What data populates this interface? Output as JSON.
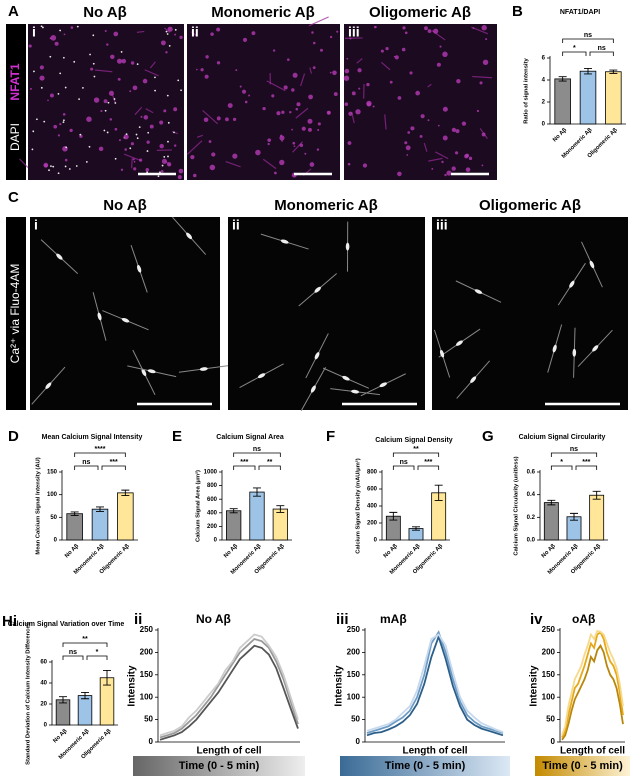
{
  "micrographs": [
    {
      "panel": "A",
      "stain_label": [
        "DAPI",
        "NFAT1"
      ],
      "titles": [
        "No Aβ",
        "Monomeric Aβ",
        "Oligomeric Aβ"
      ],
      "subpanels": [
        "i",
        "ii",
        "iii"
      ]
    },
    {
      "panel": "C",
      "stain_label": [
        "Ca²⁺ via Fluo-4AM"
      ],
      "titles": [
        "No Aβ",
        "Monomeric Aβ",
        "Oligomeric Aβ"
      ],
      "subpanels": [
        "i",
        "ii",
        "iii"
      ]
    }
  ],
  "chart_data": [
    {
      "type": "bar",
      "panel": "B",
      "title": "NFAT1/DAPI",
      "ylabel": "Ratio of signal intensity",
      "categories": [
        "No Aβ",
        "Monomeric Aβ",
        "Oligomeric Aβ"
      ],
      "values": [
        4.1,
        4.8,
        4.75
      ],
      "errors": [
        0.2,
        0.25,
        0.15
      ],
      "colors": [
        "#8c8c8c",
        "#9dc3e6",
        "#ffe699"
      ],
      "ylim": [
        0,
        6
      ],
      "yticks": [
        0,
        2,
        4,
        6
      ],
      "significance": [
        {
          "pair": [
            "No Aβ",
            "Oligomeric Aβ"
          ],
          "label": "ns"
        },
        {
          "pair": [
            "No Aβ",
            "Monomeric Aβ"
          ],
          "label": "*"
        },
        {
          "pair": [
            "Monomeric Aβ",
            "Oligomeric Aβ"
          ],
          "label": "ns"
        }
      ]
    },
    {
      "type": "bar",
      "panel": "D",
      "title": "Mean Calcium Signal Intensity",
      "ylabel": "Mean Calcium Signal Intensity (AU)",
      "categories": [
        "No Aβ",
        "Monomeric Aβ",
        "Oligomeric Aβ"
      ],
      "values": [
        58,
        68,
        104
      ],
      "errors": [
        4,
        5,
        6
      ],
      "colors": [
        "#8c8c8c",
        "#9dc3e6",
        "#ffe699"
      ],
      "ylim": [
        0,
        150
      ],
      "yticks": [
        0,
        50,
        100,
        150
      ],
      "significance": [
        {
          "pair": [
            "No Aβ",
            "Oligomeric Aβ"
          ],
          "label": "****"
        },
        {
          "pair": [
            "No Aβ",
            "Monomeric Aβ"
          ],
          "label": "ns"
        },
        {
          "pair": [
            "Monomeric Aβ",
            "Oligomeric Aβ"
          ],
          "label": "***"
        }
      ]
    },
    {
      "type": "bar",
      "panel": "E",
      "title": "Calcium Signal Area",
      "ylabel": "Calcium Signal Area (μm²)",
      "categories": [
        "No Aβ",
        "Monomeric Aβ",
        "Oligomeric Aβ"
      ],
      "values": [
        430,
        705,
        455
      ],
      "errors": [
        30,
        60,
        50
      ],
      "colors": [
        "#8c8c8c",
        "#9dc3e6",
        "#ffe699"
      ],
      "ylim": [
        0,
        1000
      ],
      "yticks": [
        0,
        200,
        400,
        600,
        800,
        1000
      ],
      "significance": [
        {
          "pair": [
            "No Aβ",
            "Oligomeric Aβ"
          ],
          "label": "ns"
        },
        {
          "pair": [
            "No Aβ",
            "Monomeric Aβ"
          ],
          "label": "***"
        },
        {
          "pair": [
            "Monomeric Aβ",
            "Oligomeric Aβ"
          ],
          "label": "**"
        }
      ]
    },
    {
      "type": "bar",
      "panel": "F",
      "title": "Calcium Signal Density",
      "ylabel": "Calcium Signal Density (mAU/μm²)",
      "categories": [
        "No Aβ",
        "Monomeric Aβ",
        "Oligomeric Aβ"
      ],
      "values": [
        280,
        135,
        555
      ],
      "errors": [
        45,
        20,
        90
      ],
      "colors": [
        "#8c8c8c",
        "#9dc3e6",
        "#ffe699"
      ],
      "ylim": [
        0,
        800
      ],
      "yticks": [
        0,
        200,
        400,
        600,
        800
      ],
      "significance": [
        {
          "pair": [
            "No Aβ",
            "Oligomeric Aβ"
          ],
          "label": "**"
        },
        {
          "pair": [
            "No Aβ",
            "Monomeric Aβ"
          ],
          "label": "ns"
        },
        {
          "pair": [
            "Monomeric Aβ",
            "Oligomeric Aβ"
          ],
          "label": "***"
        }
      ]
    },
    {
      "type": "bar",
      "panel": "G",
      "title": "Calcium Signal Circularity",
      "ylabel": "Calcium Signal Circularity (unitless)",
      "categories": [
        "No Aβ",
        "Monomeric Aβ",
        "Oligomeric Aβ"
      ],
      "values": [
        0.33,
        0.205,
        0.395
      ],
      "errors": [
        0.02,
        0.03,
        0.035
      ],
      "colors": [
        "#8c8c8c",
        "#9dc3e6",
        "#ffe699"
      ],
      "ylim": [
        0,
        0.6
      ],
      "yticks": [
        {
          "value": 0,
          "label": "0.0"
        },
        0.2,
        0.4,
        0.6
      ],
      "significance": [
        {
          "pair": [
            "No Aβ",
            "Oligomeric Aβ"
          ],
          "label": "ns"
        },
        {
          "pair": [
            "No Aβ",
            "Monomeric Aβ"
          ],
          "label": "*"
        },
        {
          "pair": [
            "Monomeric Aβ",
            "Oligomeric Aβ"
          ],
          "label": "***"
        }
      ]
    },
    {
      "type": "bar",
      "panel": "Hi",
      "title": "Calcium Signal Variation over Time",
      "ylabel": "Standard Deviation of Calcium Intensity Differences",
      "categories": [
        "No Aβ",
        "Monomeric Aβ",
        "Oligomeric Aβ"
      ],
      "values": [
        24,
        28,
        45
      ],
      "errors": [
        3,
        3,
        7
      ],
      "colors": [
        "#8c8c8c",
        "#9dc3e6",
        "#ffe699"
      ],
      "ylim": [
        0,
        60
      ],
      "yticks": [
        0,
        20,
        40,
        60
      ],
      "significance": [
        {
          "pair": [
            "No Aβ",
            "Oligomeric Aβ"
          ],
          "label": "**"
        },
        {
          "pair": [
            "No Aβ",
            "Monomeric Aβ"
          ],
          "label": "ns"
        },
        {
          "pair": [
            "Monomeric Aβ",
            "Oligomeric Aβ"
          ],
          "label": "*"
        }
      ]
    },
    {
      "type": "line",
      "panel": "ii",
      "title": "No Aβ",
      "xlabel": "Length of cell",
      "ylabel": "Intensity",
      "ylim": [
        0,
        250
      ],
      "yticks": [
        0,
        50,
        100,
        150,
        200,
        250
      ],
      "series": [
        {
          "color": "#555555",
          "values": [
            5,
            10,
            15,
            22,
            35,
            50,
            70,
            90,
            110,
            135,
            160,
            185,
            200,
            215,
            210,
            195,
            165,
            120,
            75,
            30
          ]
        },
        {
          "color": "#999999",
          "values": [
            10,
            15,
            20,
            30,
            45,
            60,
            80,
            100,
            125,
            150,
            175,
            200,
            215,
            230,
            225,
            210,
            180,
            140,
            90,
            40
          ]
        },
        {
          "color": "#cccccc",
          "values": [
            15,
            20,
            25,
            35,
            55,
            70,
            90,
            110,
            130,
            160,
            180,
            210,
            225,
            240,
            235,
            215,
            190,
            150,
            100,
            50
          ]
        }
      ],
      "colorbar": {
        "label": "Time (0 - 5 min)",
        "colors": [
          "#666666",
          "#eeeeee"
        ]
      }
    },
    {
      "type": "line",
      "panel": "iii",
      "title": "mAβ",
      "xlabel": "Length of cell",
      "ylabel": "Intensity",
      "ylim": [
        0,
        250
      ],
      "yticks": [
        0,
        50,
        100,
        150,
        200,
        250
      ],
      "series": [
        {
          "color": "#2b5f8a",
          "values": [
            15,
            20,
            22,
            28,
            35,
            45,
            60,
            85,
            130,
            190,
            235,
            185,
            125,
            80,
            50,
            38,
            30,
            25,
            20,
            15
          ]
        },
        {
          "color": "#6f9cc4",
          "values": [
            20,
            25,
            30,
            35,
            45,
            55,
            70,
            100,
            150,
            220,
            245,
            200,
            140,
            90,
            60,
            45,
            35,
            30,
            25,
            20
          ]
        },
        {
          "color": "#c6d9ee",
          "values": [
            25,
            30,
            35,
            40,
            50,
            65,
            80,
            115,
            170,
            230,
            240,
            215,
            155,
            100,
            70,
            55,
            42,
            35,
            28,
            22
          ]
        }
      ],
      "colorbar": {
        "label": "Time (0 - 5 min)",
        "colors": [
          "#3a6b96",
          "#dce8f5"
        ]
      }
    },
    {
      "type": "line",
      "panel": "iv",
      "title": "oAβ",
      "xlabel": "Length of cell",
      "ylabel": "Intensity",
      "ylim": [
        0,
        250
      ],
      "yticks": [
        0,
        50,
        100,
        150,
        200,
        250
      ],
      "series": [
        {
          "color": "#b8860b",
          "values": [
            5,
            15,
            40,
            70,
            95,
            110,
            125,
            140,
            160,
            190,
            180,
            205,
            215,
            200,
            170,
            150,
            140,
            120,
            85,
            40
          ]
        },
        {
          "color": "#e6a817",
          "values": [
            10,
            25,
            60,
            90,
            120,
            130,
            150,
            170,
            195,
            220,
            210,
            240,
            245,
            230,
            200,
            180,
            170,
            150,
            110,
            60
          ]
        },
        {
          "color": "#f7d98a",
          "values": [
            15,
            35,
            80,
            110,
            140,
            155,
            170,
            195,
            215,
            240,
            230,
            248,
            246,
            240,
            220,
            200,
            185,
            165,
            130,
            80
          ]
        }
      ],
      "colorbar": {
        "label": "Time (0 - 5 min)",
        "colors": [
          "#c48a00",
          "#fdf3d6"
        ]
      }
    }
  ]
}
